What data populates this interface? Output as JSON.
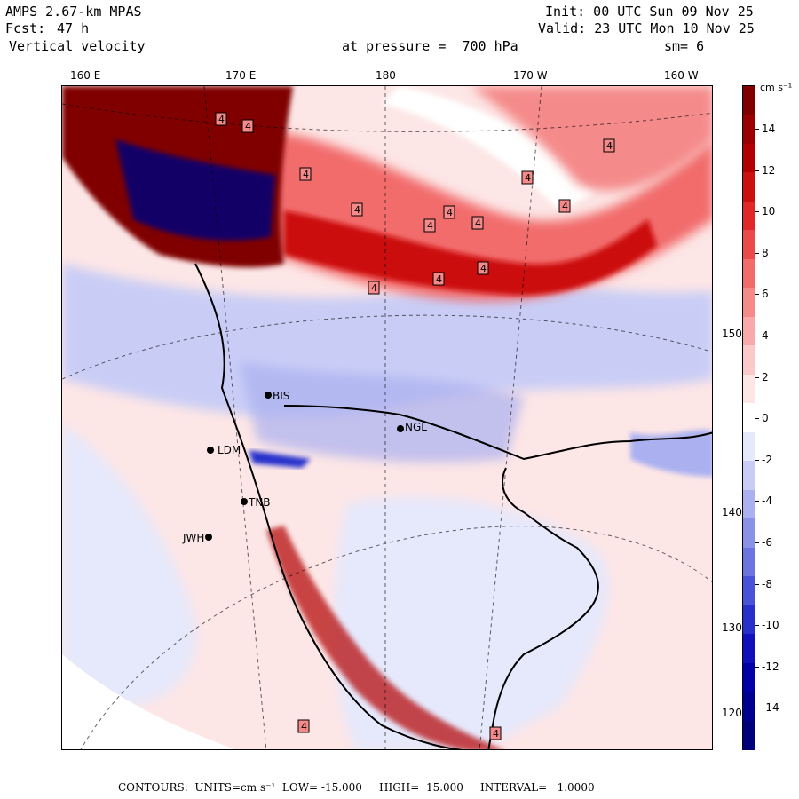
{
  "header": {
    "model": "AMPS 2.67-km MPAS",
    "forecast_label": "Fcst:",
    "forecast_value": "47 h",
    "field": "Vertical velocity",
    "init": "Init: 00 UTC Sun 09 Nov 25",
    "valid": "Valid: 23 UTC Mon 10 Nov 25",
    "pressure": "at pressure =  700 hPa",
    "smoothing": "sm= 6"
  },
  "map": {
    "longitude_labels": [
      "160 E",
      "170 E",
      "180",
      "170 W",
      "160 W"
    ],
    "latitude_labels": [
      "150 W",
      "140 W",
      "130 W",
      "120 W"
    ],
    "stations": [
      "BIS",
      "NGL",
      "LDM",
      "TNB",
      "JWH"
    ],
    "contour_marker": "4"
  },
  "colorbar": {
    "units_label": "cm s⁻¹",
    "tick_labels": [
      "14",
      "12",
      "10",
      "8",
      "6",
      "4",
      "2",
      "0",
      "-2",
      "-4",
      "-6",
      "-8",
      "-10",
      "-12",
      "-14"
    ],
    "colors": [
      "#800000",
      "#9a0000",
      "#b20000",
      "#cc1010",
      "#e02828",
      "#ec4a4a",
      "#f26c6c",
      "#f58a8a",
      "#f8aaaa",
      "#fbc9c9",
      "#fde6e6",
      "#ffffff",
      "#e6e8fb",
      "#c9cdf6",
      "#aab0f0",
      "#8a92e8",
      "#6c74e0",
      "#4a52d8",
      "#2830cc",
      "#1010bd",
      "#0000a6",
      "#000090",
      "#00007a"
    ]
  },
  "footer": {
    "text": "CONTOURS:  UNITS=cm s⁻¹  LOW= -15.000     HIGH=  15.000     INTERVAL=   1.0000"
  }
}
